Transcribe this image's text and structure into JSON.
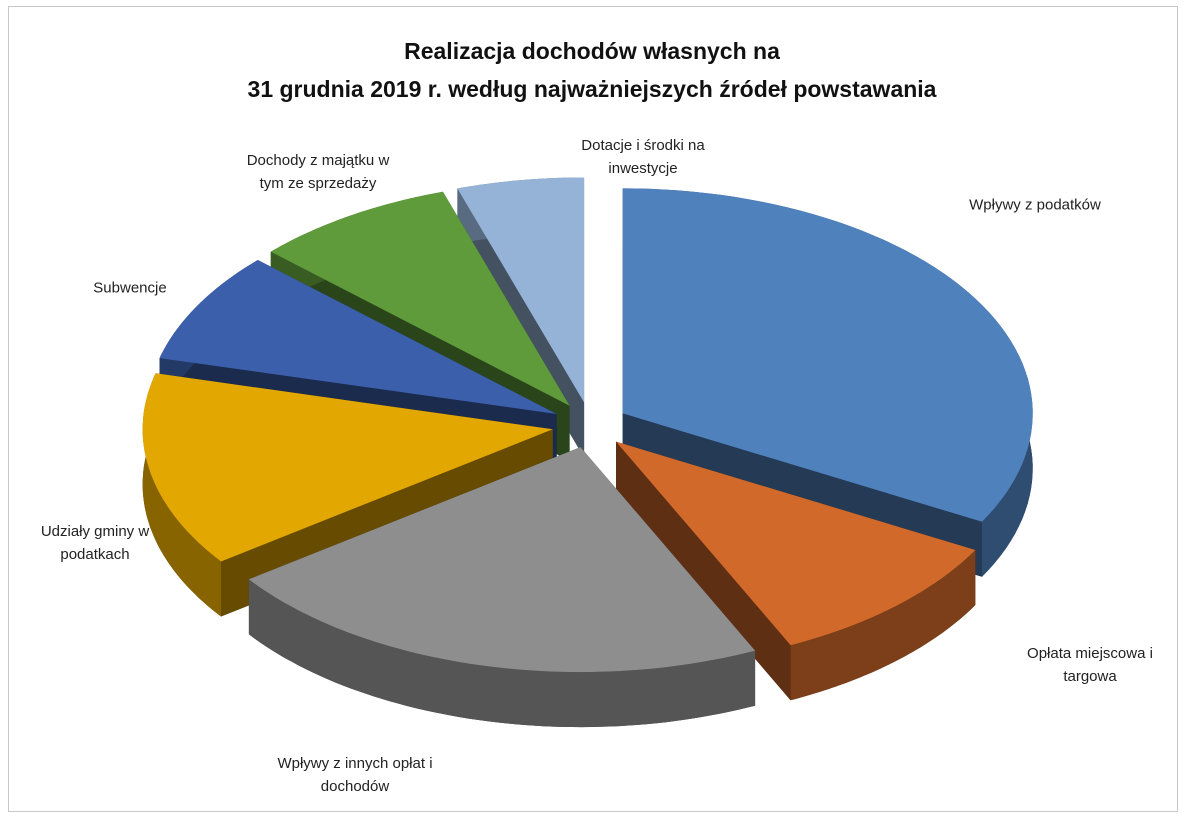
{
  "chart_data": {
    "type": "pie3d",
    "title": "Realizacja dochodów własnych na\n31 grudnia 2019 r. według najważniejszych źródeł powstawania",
    "categories": [
      "Wpływy z podatków",
      "Opłata miejscowa i targowa",
      "Wpływy z innych opłat i dochodów",
      "Udziały gminy w podatkach",
      "Subwencje",
      "Dochody z majątku w tym ze sprzedaży",
      "Dotacje i środki na inwestycje"
    ],
    "values": [
      33,
      10,
      22,
      14,
      8,
      8,
      5
    ],
    "colors": [
      "#4f81bd",
      "#d0692a",
      "#8e8e8e",
      "#e2a700",
      "#3b5faa",
      "#5f9a3b",
      "#95b3d7"
    ]
  }
}
